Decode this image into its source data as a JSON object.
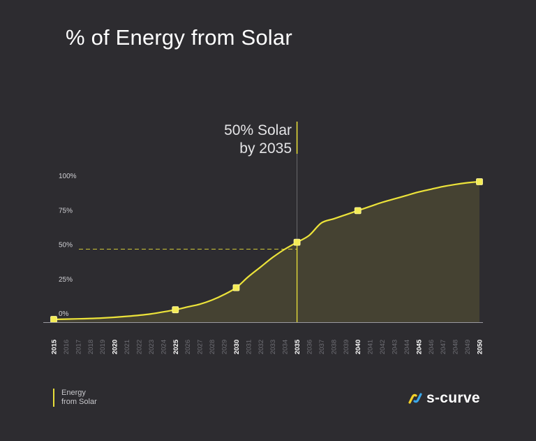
{
  "title": "% of Energy from Solar",
  "annotation": {
    "line1": "50% Solar",
    "line2": "by 2035"
  },
  "legend": {
    "line1": "Energy",
    "line2": "from Solar"
  },
  "brand": {
    "name": "s-curve"
  },
  "colors": {
    "background": "#2d2c30",
    "accent": "#ece33a",
    "fill": "#4a4632",
    "axis": "#9a9aa0",
    "bold_tick": "#ffffff",
    "faint_tick": "#6e6e74",
    "marker_line": "#6a6a6e",
    "logo_yellow": "#f3d027",
    "logo_blue": "#3aa6e8"
  },
  "chart_data": {
    "type": "area",
    "title": "% of Energy from Solar",
    "xlabel": "",
    "ylabel": "",
    "xlim": [
      2015,
      2050
    ],
    "ylim": [
      0,
      100
    ],
    "yticks": [
      {
        "value": 0,
        "label": "0%"
      },
      {
        "value": 25,
        "label": "25%"
      },
      {
        "value": 50,
        "label": "50%"
      },
      {
        "value": 75,
        "label": "75%"
      },
      {
        "value": 100,
        "label": "100%"
      }
    ],
    "xticks": [
      {
        "year": 2015,
        "label": "2015",
        "bold": true
      },
      {
        "year": 2016,
        "label": "2016",
        "bold": false
      },
      {
        "year": 2017,
        "label": "2017",
        "bold": false
      },
      {
        "year": 2018,
        "label": "2018",
        "bold": false
      },
      {
        "year": 2019,
        "label": "2019",
        "bold": false
      },
      {
        "year": 2020,
        "label": "2020",
        "bold": true
      },
      {
        "year": 2021,
        "label": "2021",
        "bold": false
      },
      {
        "year": 2022,
        "label": "2022",
        "bold": false
      },
      {
        "year": 2023,
        "label": "2023",
        "bold": false
      },
      {
        "year": 2024,
        "label": "2024",
        "bold": false
      },
      {
        "year": 2025,
        "label": "2025",
        "bold": true
      },
      {
        "year": 2026,
        "label": "2026",
        "bold": false
      },
      {
        "year": 2027,
        "label": "2027",
        "bold": false
      },
      {
        "year": 2028,
        "label": "2028",
        "bold": false
      },
      {
        "year": 2029,
        "label": "2029",
        "bold": false
      },
      {
        "year": 2030,
        "label": "2030",
        "bold": true
      },
      {
        "year": 2031,
        "label": "2031",
        "bold": false
      },
      {
        "year": 2032,
        "label": "2032",
        "bold": false
      },
      {
        "year": 2033,
        "label": "2033",
        "bold": false
      },
      {
        "year": 2034,
        "label": "2034",
        "bold": false
      },
      {
        "year": 2035,
        "label": "2035",
        "bold": true
      },
      {
        "year": 2036,
        "label": "2036",
        "bold": false
      },
      {
        "year": 2037,
        "label": "2037",
        "bold": false
      },
      {
        "year": 2038,
        "label": "2038",
        "bold": false
      },
      {
        "year": 2039,
        "label": "2039",
        "bold": false
      },
      {
        "year": 2040,
        "label": "2040",
        "bold": true
      },
      {
        "year": 2041,
        "label": "2041",
        "bold": false
      },
      {
        "year": 2042,
        "label": "2042",
        "bold": false
      },
      {
        "year": 2043,
        "label": "2043",
        "bold": false
      },
      {
        "year": 2044,
        "label": "2044",
        "bold": false
      },
      {
        "year": 2045,
        "label": "2045",
        "bold": true
      },
      {
        "year": 2046,
        "label": "2046",
        "bold": false
      },
      {
        "year": 2047,
        "label": "2047",
        "bold": false
      },
      {
        "year": 2048,
        "label": "2048",
        "bold": false
      },
      {
        "year": 2049,
        "label": "2049",
        "bold": false
      },
      {
        "year": 2050,
        "label": "2050",
        "bold": true
      }
    ],
    "series": [
      {
        "name": "Energy from Solar",
        "points": [
          [
            2015,
            -1
          ],
          [
            2017,
            -0.6
          ],
          [
            2019,
            0
          ],
          [
            2021,
            1.2
          ],
          [
            2023,
            3
          ],
          [
            2025,
            6
          ],
          [
            2026,
            8
          ],
          [
            2027,
            10
          ],
          [
            2028,
            13
          ],
          [
            2029,
            17
          ],
          [
            2030,
            22
          ],
          [
            2031,
            30
          ],
          [
            2032,
            37
          ],
          [
            2033,
            44
          ],
          [
            2034,
            50
          ],
          [
            2035,
            55
          ],
          [
            2036,
            60
          ],
          [
            2037,
            69
          ],
          [
            2038,
            72
          ],
          [
            2039,
            75
          ],
          [
            2040,
            78
          ],
          [
            2041,
            81
          ],
          [
            2042,
            84
          ],
          [
            2043,
            86.5
          ],
          [
            2044,
            89
          ],
          [
            2045,
            91.5
          ],
          [
            2046,
            93.5
          ],
          [
            2047,
            95.5
          ],
          [
            2048,
            97
          ],
          [
            2049,
            98.2
          ],
          [
            2050,
            99
          ]
        ],
        "markers": [
          [
            2015,
            -1
          ],
          [
            2025,
            6
          ],
          [
            2030,
            22
          ],
          [
            2035,
            55
          ],
          [
            2040,
            78
          ],
          [
            2050,
            99
          ]
        ]
      }
    ],
    "reference": {
      "year": 2035,
      "value": 50
    }
  }
}
